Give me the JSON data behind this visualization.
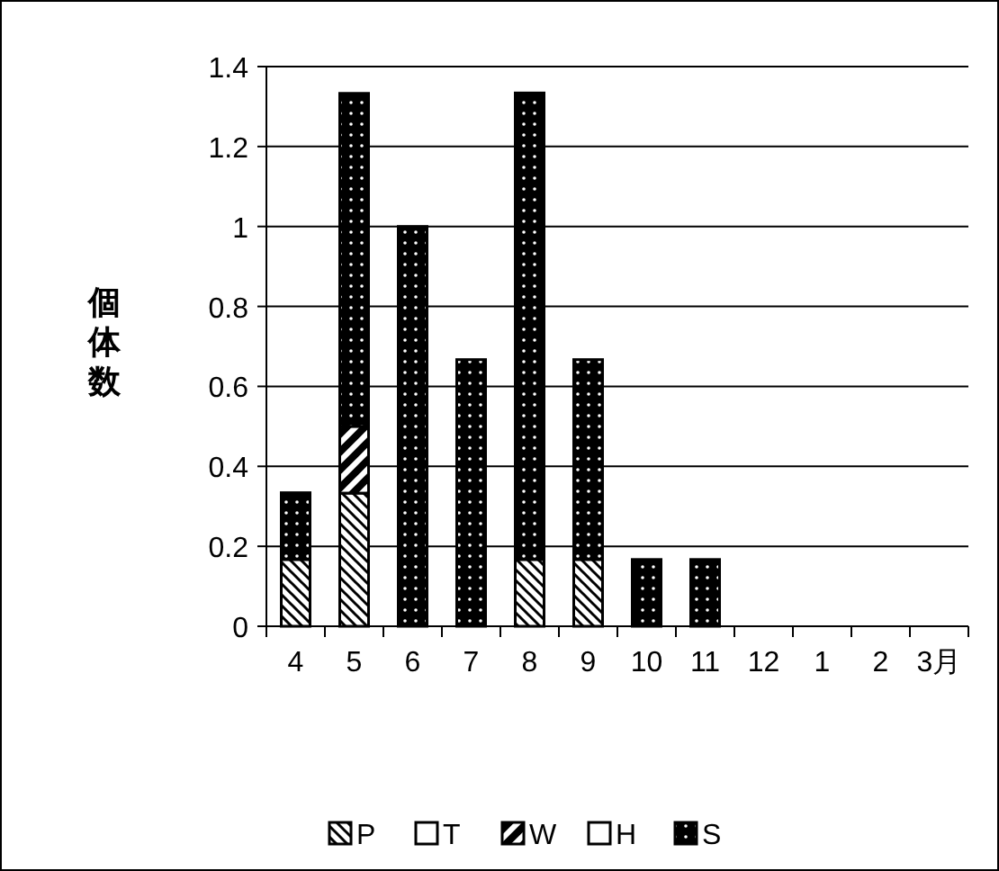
{
  "chart_data": {
    "type": "bar",
    "stacked": true,
    "ylabel": "個体数",
    "categories": [
      "4",
      "5",
      "6",
      "7",
      "8",
      "9",
      "10",
      "11",
      "12",
      "1",
      "2",
      "3月"
    ],
    "series": [
      {
        "name": "P",
        "color": "#000000",
        "values": [
          0.167,
          0.333,
          0,
          0,
          0.167,
          0.167,
          0,
          0,
          0,
          0,
          0,
          0
        ]
      },
      {
        "name": "T",
        "color": "#000000",
        "values": [
          0,
          0,
          0,
          0,
          0,
          0,
          0,
          0,
          0,
          0,
          0,
          0
        ]
      },
      {
        "name": "W",
        "color": "#000000",
        "values": [
          0,
          0.167,
          0,
          0,
          0,
          0,
          0,
          0,
          0,
          0,
          0,
          0
        ]
      },
      {
        "name": "H",
        "color": "#000000",
        "values": [
          0,
          0,
          0,
          0,
          0,
          0,
          0,
          0,
          0,
          0,
          0,
          0
        ]
      },
      {
        "name": "S",
        "color": "#000000",
        "values": [
          0.167,
          0.833,
          1.0,
          0.667,
          1.167,
          0.5,
          0.167,
          0.167,
          0,
          0,
          0,
          0
        ]
      }
    ],
    "ylim": [
      0,
      1.4
    ],
    "yticks": [
      0,
      0.2,
      0.4,
      0.6,
      0.8,
      1,
      1.2,
      1.4
    ],
    "grid": "y",
    "legend": "bottom"
  }
}
